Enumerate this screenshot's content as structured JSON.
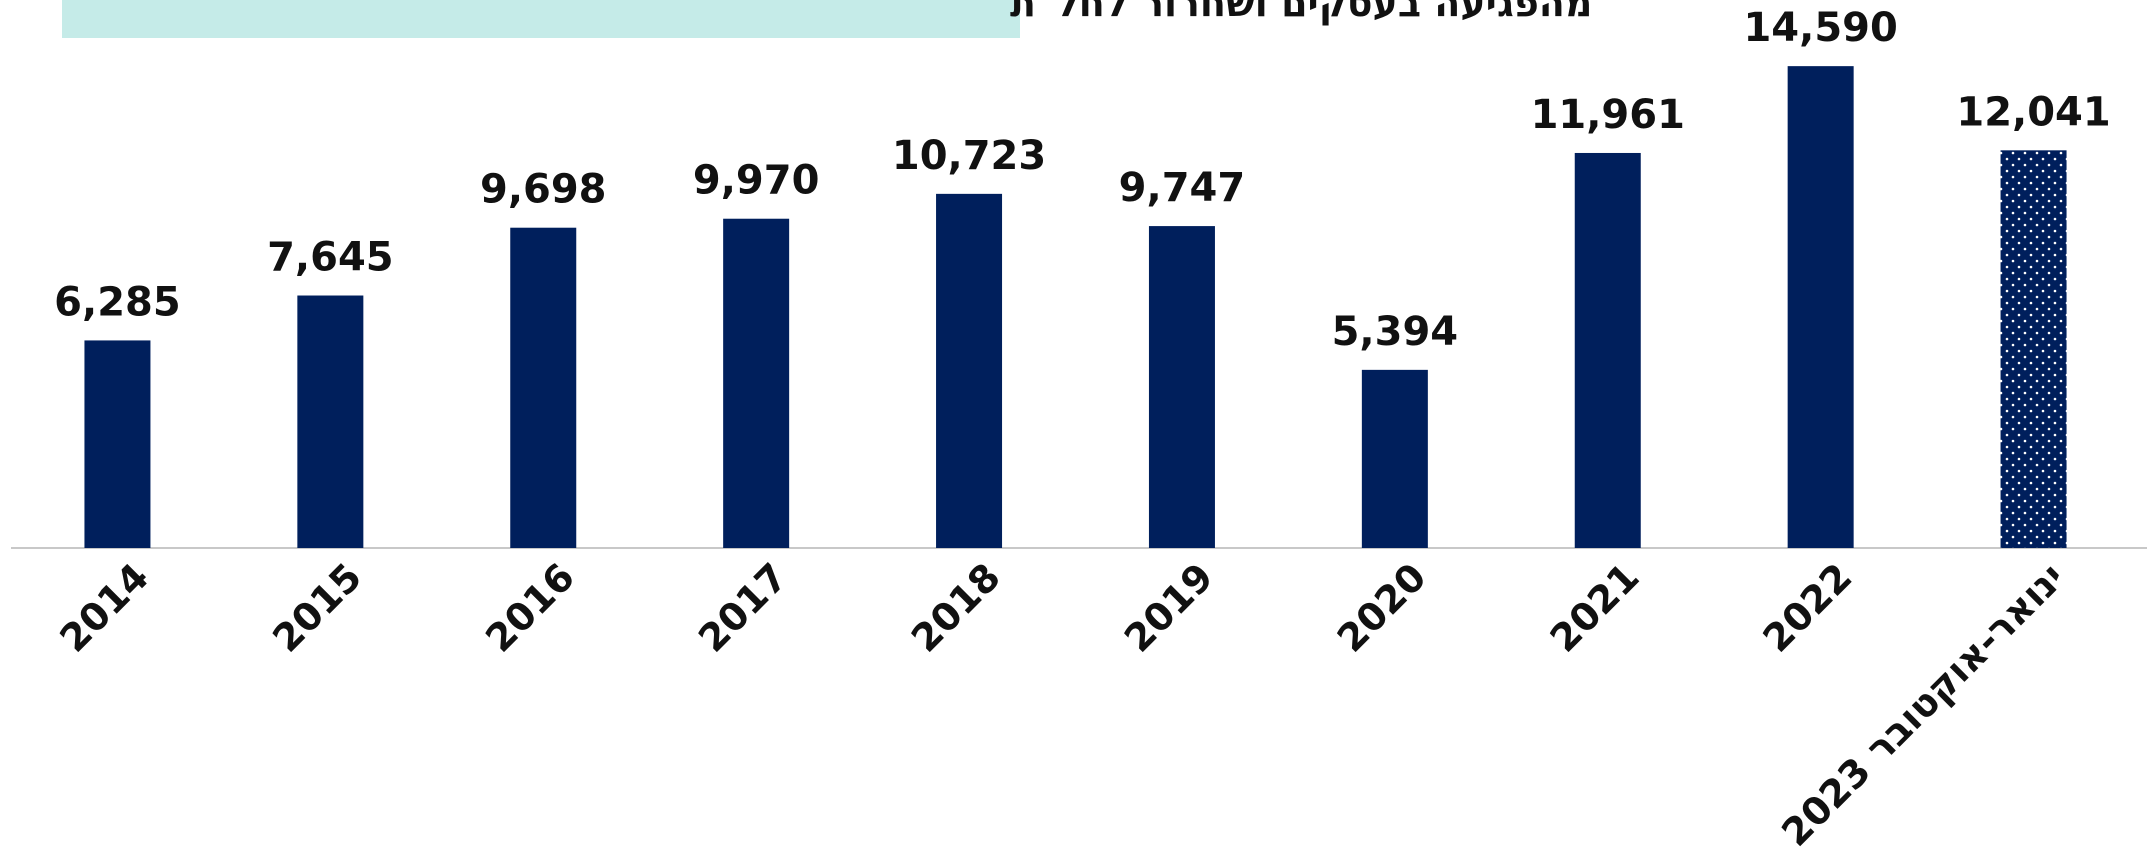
{
  "chart_data": {
    "type": "bar",
    "title": "מהפגיעה בעסקים ושחרור לחל\"ת",
    "categories": [
      "2014",
      "2015",
      "2016",
      "2017",
      "2018",
      "2019",
      "2020",
      "2021",
      "2022",
      "ינואר-אוקטובר 2023"
    ],
    "values": [
      6285,
      7645,
      9698,
      9970,
      10723,
      9747,
      5394,
      11961,
      14590,
      12041
    ],
    "value_labels": [
      "6,285",
      "7,645",
      "9,698",
      "9,970",
      "10,723",
      "9,747",
      "5,394",
      "11,961",
      "14,590",
      "12,041"
    ],
    "color": "#001f5c",
    "dotted": [
      false,
      false,
      false,
      false,
      false,
      false,
      false,
      false,
      false,
      true
    ],
    "ylim": [
      0,
      15000
    ]
  }
}
